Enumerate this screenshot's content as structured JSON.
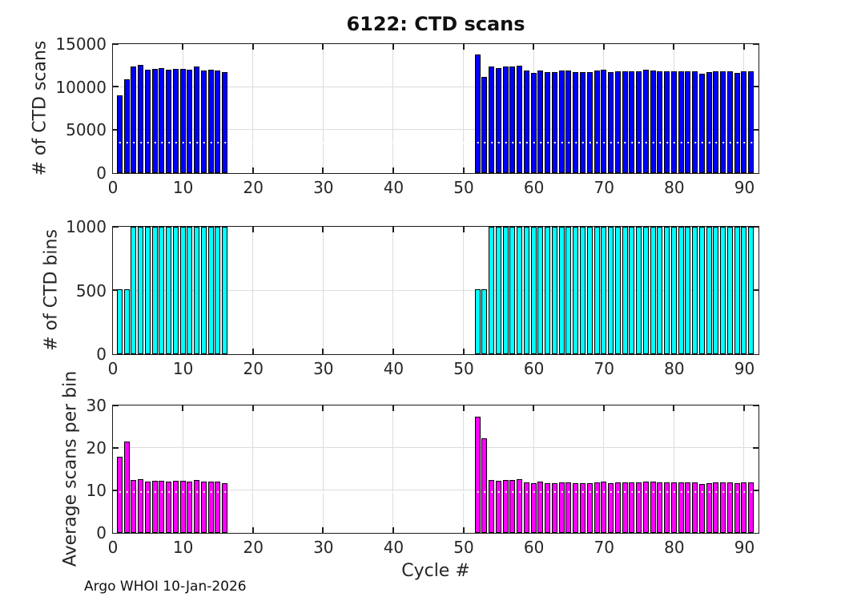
{
  "figure": {
    "watermark": "Argo WHOI 10-Jan-2026"
  },
  "chart_data": [
    {
      "type": "bar",
      "title": "6122: CTD scans",
      "ylabel": "# of CTD scans",
      "ylim": [
        0,
        15000
      ],
      "yticks": [
        0,
        5000,
        10000,
        15000
      ],
      "xlim": [
        0,
        92
      ],
      "xticks": [
        0,
        10,
        20,
        30,
        40,
        50,
        60,
        70,
        80,
        90
      ],
      "bar_color": "#0000FF",
      "x": [
        1,
        2,
        3,
        4,
        5,
        6,
        7,
        8,
        9,
        10,
        11,
        12,
        13,
        14,
        15,
        16,
        52,
        53,
        54,
        55,
        56,
        57,
        58,
        59,
        60,
        61,
        62,
        63,
        64,
        65,
        66,
        67,
        68,
        69,
        70,
        71,
        72,
        73,
        74,
        75,
        76,
        77,
        78,
        79,
        80,
        81,
        82,
        83,
        84,
        85,
        86,
        87,
        88,
        89,
        90,
        91
      ],
      "values": [
        9000,
        10870,
        12370,
        12550,
        12000,
        12090,
        12180,
        11930,
        12050,
        12050,
        12000,
        12300,
        11870,
        11990,
        11900,
        11680,
        13790,
        11170,
        12380,
        12130,
        12350,
        12350,
        12480,
        11840,
        11560,
        11900,
        11650,
        11700,
        11840,
        11840,
        11680,
        11680,
        11680,
        11840,
        11950,
        11720,
        11750,
        11750,
        11800,
        11750,
        12000,
        11900,
        11750,
        11750,
        11750,
        11800,
        11750,
        11750,
        11500,
        11700,
        11800,
        11750,
        11800,
        11600,
        11750,
        11780
      ]
    },
    {
      "type": "bar",
      "title": "",
      "ylabel": "# of CTD bins",
      "ylim": [
        0,
        1000
      ],
      "yticks": [
        0,
        500,
        1000
      ],
      "xlim": [
        0,
        92
      ],
      "xticks": [
        0,
        10,
        20,
        30,
        40,
        50,
        60,
        70,
        80,
        90
      ],
      "bar_color": "#00FFFF",
      "x": [
        1,
        2,
        3,
        4,
        5,
        6,
        7,
        8,
        9,
        10,
        11,
        12,
        13,
        14,
        15,
        16,
        52,
        53,
        54,
        55,
        56,
        57,
        58,
        59,
        60,
        61,
        62,
        63,
        64,
        65,
        66,
        67,
        68,
        69,
        70,
        71,
        72,
        73,
        74,
        75,
        76,
        77,
        78,
        79,
        80,
        81,
        82,
        83,
        84,
        85,
        86,
        87,
        88,
        89,
        90,
        91
      ],
      "values": [
        505,
        505,
        1000,
        1000,
        1000,
        1000,
        1000,
        1000,
        1000,
        1000,
        1000,
        1000,
        1000,
        1000,
        1000,
        1000,
        505,
        505,
        1000,
        1000,
        1000,
        1000,
        1000,
        1000,
        1000,
        1000,
        1000,
        1000,
        1000,
        1000,
        1000,
        1000,
        1000,
        1000,
        1000,
        1000,
        1000,
        1000,
        1000,
        1000,
        1000,
        1000,
        1000,
        1000,
        1000,
        1000,
        1000,
        1000,
        1000,
        1000,
        1000,
        1000,
        1000,
        1000,
        1000,
        1000
      ]
    },
    {
      "type": "bar",
      "title": "",
      "ylabel": "Average scans per bin",
      "xlabel": "Cycle #",
      "ylim": [
        0,
        30
      ],
      "yticks": [
        0,
        10,
        20,
        30
      ],
      "xlim": [
        0,
        92
      ],
      "xticks": [
        0,
        10,
        20,
        30,
        40,
        50,
        60,
        70,
        80,
        90
      ],
      "bar_color": "#FF00FF",
      "x": [
        1,
        2,
        3,
        4,
        5,
        6,
        7,
        8,
        9,
        10,
        11,
        12,
        13,
        14,
        15,
        16,
        52,
        53,
        54,
        55,
        56,
        57,
        58,
        59,
        60,
        61,
        62,
        63,
        64,
        65,
        66,
        67,
        68,
        69,
        70,
        71,
        72,
        73,
        74,
        75,
        76,
        77,
        78,
        79,
        80,
        81,
        82,
        83,
        84,
        85,
        86,
        87,
        88,
        89,
        90,
        91
      ],
      "values": [
        17.8,
        21.5,
        12.4,
        12.6,
        12.0,
        12.1,
        12.2,
        11.9,
        12.1,
        12.1,
        12.0,
        12.3,
        11.9,
        12.0,
        11.9,
        11.7,
        27.3,
        22.1,
        12.4,
        12.1,
        12.4,
        12.4,
        12.5,
        11.8,
        11.6,
        11.9,
        11.7,
        11.7,
        11.8,
        11.8,
        11.7,
        11.7,
        11.7,
        11.8,
        12.0,
        11.7,
        11.8,
        11.8,
        11.8,
        11.8,
        12.0,
        11.9,
        11.8,
        11.8,
        11.8,
        11.8,
        11.8,
        11.8,
        11.5,
        11.7,
        11.8,
        11.8,
        11.8,
        11.6,
        11.8,
        11.8
      ]
    }
  ]
}
